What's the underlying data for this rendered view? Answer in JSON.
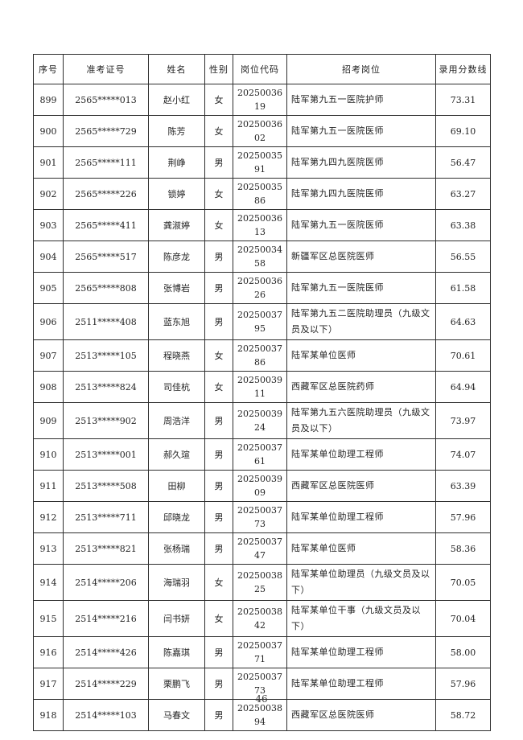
{
  "page": {
    "page_number": "46"
  },
  "colors": {
    "background": "#ffffff",
    "text": "#232323",
    "table_border": "#2e2e2e"
  },
  "table": {
    "headers": [
      "序号",
      "准考证号",
      "姓名",
      "性别",
      "岗位代码",
      "招考岗位",
      "录用分数线"
    ],
    "rows": [
      [
        "899",
        "2565*****013",
        "赵小红",
        "女",
        "2025003619",
        "陆军第九五一医院护师",
        "73.31"
      ],
      [
        "900",
        "2565*****729",
        "陈芳",
        "女",
        "2025003602",
        "陆军第九五一医院医师",
        "69.10"
      ],
      [
        "901",
        "2565*****111",
        "荆峥",
        "男",
        "2025003591",
        "陆军第九四九医院医师",
        "56.47"
      ],
      [
        "902",
        "2565*****226",
        "锁婷",
        "女",
        "2025003586",
        "陆军第九四九医院医师",
        "63.27"
      ],
      [
        "903",
        "2565*****411",
        "龚淑婷",
        "女",
        "2025003613",
        "陆军第九五一医院医师",
        "63.38"
      ],
      [
        "904",
        "2565*****517",
        "陈彦龙",
        "男",
        "2025003458",
        "新疆军区总医院医师",
        "56.55"
      ],
      [
        "905",
        "2565*****808",
        "张博岩",
        "男",
        "2025003626",
        "陆军第九五一医院医师",
        "61.58"
      ],
      [
        "906",
        "2511*****408",
        "蓝东旭",
        "男",
        "2025003795",
        "陆军第九五二医院助理员（九级文员及以下）",
        "64.63"
      ],
      [
        "907",
        "2513*****105",
        "程晓燕",
        "女",
        "2025003786",
        "陆军某单位医师",
        "70.61"
      ],
      [
        "908",
        "2513*****824",
        "司佳杭",
        "女",
        "2025003911",
        "西藏军区总医院药师",
        "64.94"
      ],
      [
        "909",
        "2513*****902",
        "周浩洋",
        "男",
        "2025003924",
        "陆军第九五六医院助理员（九级文员及以下）",
        "73.97"
      ],
      [
        "910",
        "2513*****001",
        "郝久瑄",
        "男",
        "2025003761",
        "陆军某单位助理工程师",
        "74.07"
      ],
      [
        "911",
        "2513*****508",
        "田柳",
        "男",
        "2025003909",
        "西藏军区总医院医师",
        "63.39"
      ],
      [
        "912",
        "2513*****711",
        "邱晓龙",
        "男",
        "2025003773",
        "陆军某单位助理工程师",
        "57.96"
      ],
      [
        "913",
        "2513*****821",
        "张杨瑞",
        "男",
        "2025003747",
        "陆军某单位医师",
        "58.36"
      ],
      [
        "914",
        "2514*****206",
        "海瑞羽",
        "女",
        "2025003825",
        "陆军某单位助理员（九级文员及以下）",
        "70.05"
      ],
      [
        "915",
        "2514*****216",
        "闫书妍",
        "女",
        "2025003842",
        "陆军某单位干事（九级文员及以下）",
        "70.04"
      ],
      [
        "916",
        "2514*****426",
        "陈嘉琪",
        "男",
        "2025003771",
        "陆军某单位助理工程师",
        "58.00"
      ],
      [
        "917",
        "2514*****229",
        "栗鹏飞",
        "男",
        "2025003773",
        "陆军某单位助理工程师",
        "57.96"
      ],
      [
        "918",
        "2514*****103",
        "马春文",
        "男",
        "2025003894",
        "西藏军区总医院医师",
        "58.72"
      ]
    ]
  }
}
